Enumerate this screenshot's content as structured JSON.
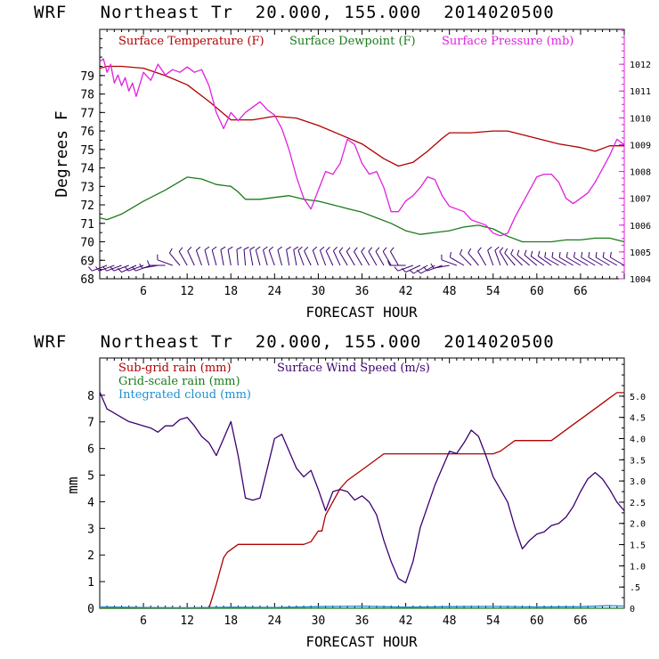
{
  "chart_data": [
    {
      "type": "line",
      "title": "WRF   Northeast Tr  20.000, 155.000  2014020500",
      "xlabel": "FORECAST HOUR",
      "ylabel": "Degrees F",
      "xlim": [
        0,
        72
      ],
      "ylim": [
        68,
        81.5
      ],
      "y2lim": [
        1004,
        1013.3
      ],
      "x_ticks": [
        6,
        12,
        18,
        24,
        30,
        36,
        42,
        48,
        54,
        60,
        66
      ],
      "y_ticks": [
        68,
        69,
        70,
        71,
        72,
        73,
        74,
        75,
        76,
        77,
        78,
        79
      ],
      "y2_ticks": [
        1004,
        1005,
        1006,
        1007,
        1008,
        1009,
        1010,
        1011,
        1012
      ],
      "series": [
        {
          "name": "Surface Temperature (F)",
          "color": "#b00000",
          "axis": "left",
          "x": [
            0,
            1,
            3,
            6,
            9,
            12,
            15,
            18,
            21,
            24,
            27,
            30,
            33,
            36,
            39,
            41,
            43,
            45,
            47,
            48,
            51,
            54,
            56,
            58,
            60,
            63,
            66,
            68,
            70,
            72
          ],
          "values": [
            79.4,
            79.5,
            79.5,
            79.4,
            79.0,
            78.5,
            77.6,
            76.6,
            76.6,
            76.8,
            76.7,
            76.3,
            75.8,
            75.3,
            74.5,
            74.1,
            74.3,
            74.9,
            75.6,
            75.9,
            75.9,
            76.0,
            76.0,
            75.8,
            75.6,
            75.3,
            75.1,
            74.9,
            75.2,
            75.2
          ]
        },
        {
          "name": "Surface Dewpoint (F)",
          "color": "#1a7a1a",
          "axis": "left",
          "x": [
            0,
            1,
            3,
            6,
            9,
            12,
            14,
            16,
            18,
            19,
            20,
            22,
            24,
            26,
            28,
            30,
            32,
            34,
            36,
            38,
            40,
            42,
            44,
            46,
            48,
            50,
            52,
            54,
            56,
            58,
            60,
            62,
            64,
            66,
            68,
            70,
            72
          ],
          "values": [
            71.3,
            71.2,
            71.5,
            72.2,
            72.8,
            73.5,
            73.4,
            73.1,
            73.0,
            72.7,
            72.3,
            72.3,
            72.4,
            72.5,
            72.3,
            72.2,
            72.0,
            71.8,
            71.6,
            71.3,
            71.0,
            70.6,
            70.4,
            70.5,
            70.6,
            70.8,
            70.9,
            70.7,
            70.3,
            70.0,
            70.0,
            70.0,
            70.1,
            70.1,
            70.2,
            70.2,
            70.0
          ]
        },
        {
          "name": "Surface Pressure (mb)",
          "color": "#e020e0",
          "axis": "right",
          "x": [
            0,
            0.5,
            1,
            1.5,
            2,
            2.5,
            3,
            3.5,
            4,
            4.5,
            5,
            6,
            7,
            8,
            9,
            10,
            11,
            12,
            13,
            14,
            15,
            16,
            17,
            18,
            19,
            20,
            21,
            22,
            23,
            24,
            25,
            26,
            27,
            28,
            29,
            30,
            31,
            32,
            33,
            34,
            35,
            36,
            37,
            38,
            39,
            40,
            41,
            42,
            43,
            44,
            45,
            46,
            47,
            48,
            49,
            50,
            51,
            52,
            53,
            54,
            55,
            56,
            57,
            58,
            59,
            60,
            61,
            62,
            63,
            64,
            65,
            66,
            67,
            68,
            69,
            70,
            71,
            72
          ],
          "values": [
            1012.1,
            1012.2,
            1011.7,
            1012.0,
            1011.3,
            1011.6,
            1011.2,
            1011.5,
            1011.0,
            1011.3,
            1010.8,
            1011.7,
            1011.4,
            1012.0,
            1011.6,
            1011.8,
            1011.7,
            1011.9,
            1011.7,
            1011.8,
            1011.2,
            1010.2,
            1009.6,
            1010.2,
            1009.9,
            1010.2,
            1010.4,
            1010.6,
            1010.3,
            1010.1,
            1009.6,
            1008.8,
            1007.8,
            1007.0,
            1006.6,
            1007.3,
            1008.0,
            1007.9,
            1008.3,
            1009.2,
            1009.0,
            1008.3,
            1007.9,
            1008.0,
            1007.4,
            1006.5,
            1006.5,
            1006.9,
            1007.1,
            1007.4,
            1007.8,
            1007.7,
            1007.1,
            1006.7,
            1006.6,
            1006.5,
            1006.2,
            1006.1,
            1006.0,
            1005.7,
            1005.6,
            1005.7,
            1006.3,
            1006.8,
            1007.3,
            1007.8,
            1007.9,
            1007.9,
            1007.6,
            1007.0,
            1006.8,
            1007.0,
            1007.2,
            1007.6,
            1008.1,
            1008.6,
            1009.2,
            1009.0
          ]
        }
      ],
      "wind_barbs": {
        "x": [
          1,
          2,
          3,
          4,
          5,
          6,
          7,
          8,
          9,
          10,
          11,
          12,
          13,
          14,
          15,
          16,
          17,
          18,
          19,
          20,
          21,
          22,
          23,
          24,
          25,
          26,
          27,
          28,
          29,
          30,
          31,
          32,
          33,
          34,
          35,
          36,
          37,
          38,
          39,
          40,
          41,
          42,
          43,
          44,
          45,
          46,
          47,
          48,
          49,
          50,
          51,
          52,
          53,
          54,
          55,
          56,
          57,
          58,
          59,
          60,
          61,
          62,
          63,
          64,
          65,
          66,
          67,
          68,
          69,
          70,
          71,
          72
        ],
        "dir": [
          250,
          250,
          250,
          250,
          245,
          250,
          250,
          260,
          270,
          290,
          320,
          330,
          335,
          340,
          345,
          345,
          350,
          350,
          355,
          355,
          350,
          345,
          345,
          340,
          345,
          350,
          350,
          340,
          335,
          340,
          340,
          335,
          335,
          330,
          330,
          330,
          330,
          330,
          330,
          330,
          330,
          270,
          250,
          245,
          240,
          240,
          250,
          260,
          290,
          300,
          315,
          320,
          330,
          340,
          340,
          330,
          320,
          315,
          310,
          310,
          305,
          305,
          300,
          300,
          300,
          300,
          300,
          300,
          300,
          300,
          300,
          300
        ]
      }
    },
    {
      "type": "line",
      "title": "WRF   Northeast Tr  20.000, 155.000  2014020500",
      "xlabel": "FORECAST HOUR",
      "ylabel": "mm",
      "xlim": [
        0,
        72
      ],
      "ylim": [
        0,
        9.4
      ],
      "y2lim": [
        0,
        5.9
      ],
      "x_ticks": [
        6,
        12,
        18,
        24,
        30,
        36,
        42,
        48,
        54,
        60,
        66
      ],
      "y_ticks": [
        0,
        1,
        2,
        3,
        4,
        5,
        6,
        7,
        8
      ],
      "y2_ticks": [
        "0",
        ".5",
        "1.0",
        "1.5",
        "2.0",
        "2.5",
        "3.0",
        "3.5",
        "4.0",
        "4.5",
        "5.0"
      ],
      "series": [
        {
          "name": "Sub-grid rain (mm)",
          "color": "#b00000",
          "axis": "left",
          "x": [
            0,
            15,
            16,
            17,
            17.5,
            18,
            19,
            28,
            29,
            30,
            30.5,
            31,
            32,
            33,
            34,
            35,
            36,
            37,
            38,
            39,
            54,
            55,
            56,
            57,
            62,
            63,
            64,
            65,
            66,
            67,
            68,
            69,
            70,
            71,
            72
          ],
          "values": [
            0,
            0,
            0.9,
            1.9,
            2.1,
            2.2,
            2.4,
            2.4,
            2.5,
            2.9,
            2.9,
            3.5,
            4.0,
            4.5,
            4.8,
            5.0,
            5.2,
            5.4,
            5.6,
            5.8,
            5.8,
            5.9,
            6.1,
            6.3,
            6.3,
            6.5,
            6.7,
            6.9,
            7.1,
            7.3,
            7.5,
            7.7,
            7.9,
            8.1,
            8.1
          ]
        },
        {
          "name": "Grid-scale rain (mm)",
          "color": "#1a7a1a",
          "axis": "left",
          "x": [
            0,
            72
          ],
          "values": [
            0,
            0
          ]
        },
        {
          "name": "Integrated cloud (mm)",
          "color": "#1e8fd0",
          "axis": "left",
          "x": [
            0,
            6,
            12,
            18,
            24,
            30,
            36,
            42,
            48,
            54,
            60,
            66,
            70,
            72
          ],
          "values": [
            0.05,
            0.03,
            0.02,
            0.04,
            0.03,
            0.06,
            0.08,
            0.04,
            0.06,
            0.07,
            0.05,
            0.06,
            0.1,
            0.08
          ]
        },
        {
          "name": "Surface Wind Speed (m/s)",
          "color": "#3b0070",
          "axis": "right",
          "x": [
            0,
            1,
            2,
            3,
            4,
            5,
            6,
            7,
            8,
            9,
            10,
            11,
            12,
            13,
            14,
            15,
            16,
            17,
            18,
            19,
            20,
            21,
            22,
            23,
            24,
            25,
            26,
            27,
            28,
            29,
            30,
            31,
            32,
            33,
            34,
            35,
            36,
            37,
            38,
            39,
            40,
            41,
            42,
            43,
            44,
            45,
            46,
            47,
            48,
            49,
            50,
            51,
            52,
            53,
            54,
            55,
            56,
            57,
            58,
            59,
            60,
            61,
            62,
            63,
            64,
            65,
            66,
            67,
            68,
            69,
            70,
            71,
            72
          ],
          "values": [
            5.1,
            4.7,
            4.6,
            4.5,
            4.4,
            4.35,
            4.3,
            4.25,
            4.15,
            4.3,
            4.3,
            4.45,
            4.5,
            4.3,
            4.05,
            3.9,
            3.6,
            4.0,
            4.4,
            3.6,
            2.6,
            2.55,
            2.6,
            3.3,
            4.0,
            4.1,
            3.7,
            3.3,
            3.1,
            3.25,
            2.8,
            2.3,
            2.75,
            2.8,
            2.75,
            2.55,
            2.65,
            2.5,
            2.2,
            1.6,
            1.1,
            0.7,
            0.6,
            1.1,
            1.9,
            2.4,
            2.9,
            3.3,
            3.7,
            3.65,
            3.9,
            4.2,
            4.05,
            3.6,
            3.1,
            2.8,
            2.5,
            1.9,
            1.4,
            1.6,
            1.75,
            1.8,
            1.95,
            2.0,
            2.15,
            2.4,
            2.75,
            3.05,
            3.2,
            3.05,
            2.8,
            2.5,
            2.3
          ]
        }
      ]
    }
  ]
}
